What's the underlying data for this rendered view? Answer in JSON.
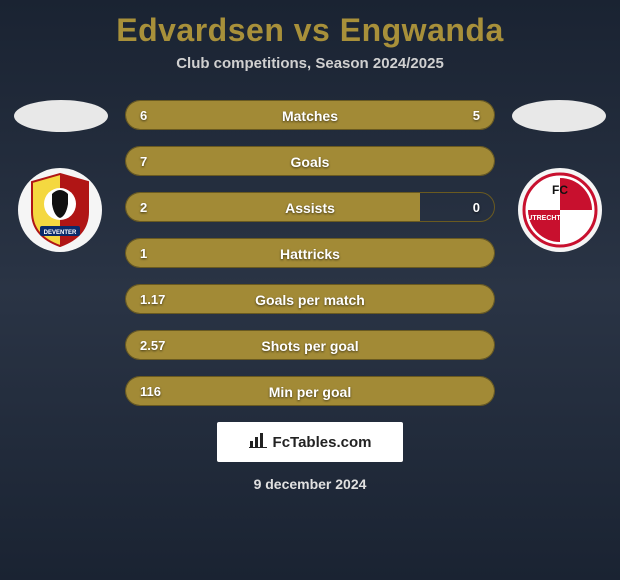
{
  "title": "Edvardsen vs Engwanda",
  "subtitle": "Club competitions, Season 2024/2025",
  "date": "9 december 2024",
  "footer_brand": "FcTables.com",
  "colors": {
    "title": "#a8903a",
    "bar": "#a28a36",
    "border": "#6a5a20",
    "bg_top": "#1a2332",
    "bg_mid": "#2a3445",
    "text": "#ffffff",
    "subtitle": "#d0d0d0"
  },
  "rows": [
    {
      "label": "Matches",
      "left": "6",
      "right": "5",
      "left_pct": 50,
      "right_pct": 50
    },
    {
      "label": "Goals",
      "left": "7",
      "right": "",
      "left_pct": 100,
      "right_pct": 0
    },
    {
      "label": "Assists",
      "left": "2",
      "right": "0",
      "left_pct": 80,
      "right_pct": 0
    },
    {
      "label": "Hattricks",
      "left": "1",
      "right": "",
      "left_pct": 100,
      "right_pct": 0
    },
    {
      "label": "Goals per match",
      "left": "1.17",
      "right": "",
      "left_pct": 100,
      "right_pct": 0
    },
    {
      "label": "Shots per goal",
      "left": "2.57",
      "right": "",
      "left_pct": 100,
      "right_pct": 0
    },
    {
      "label": "Min per goal",
      "left": "116",
      "right": "",
      "left_pct": 100,
      "right_pct": 0
    }
  ],
  "clubs": {
    "left_name": "Go Ahead Eagles",
    "right_name": "FC Utrecht"
  }
}
